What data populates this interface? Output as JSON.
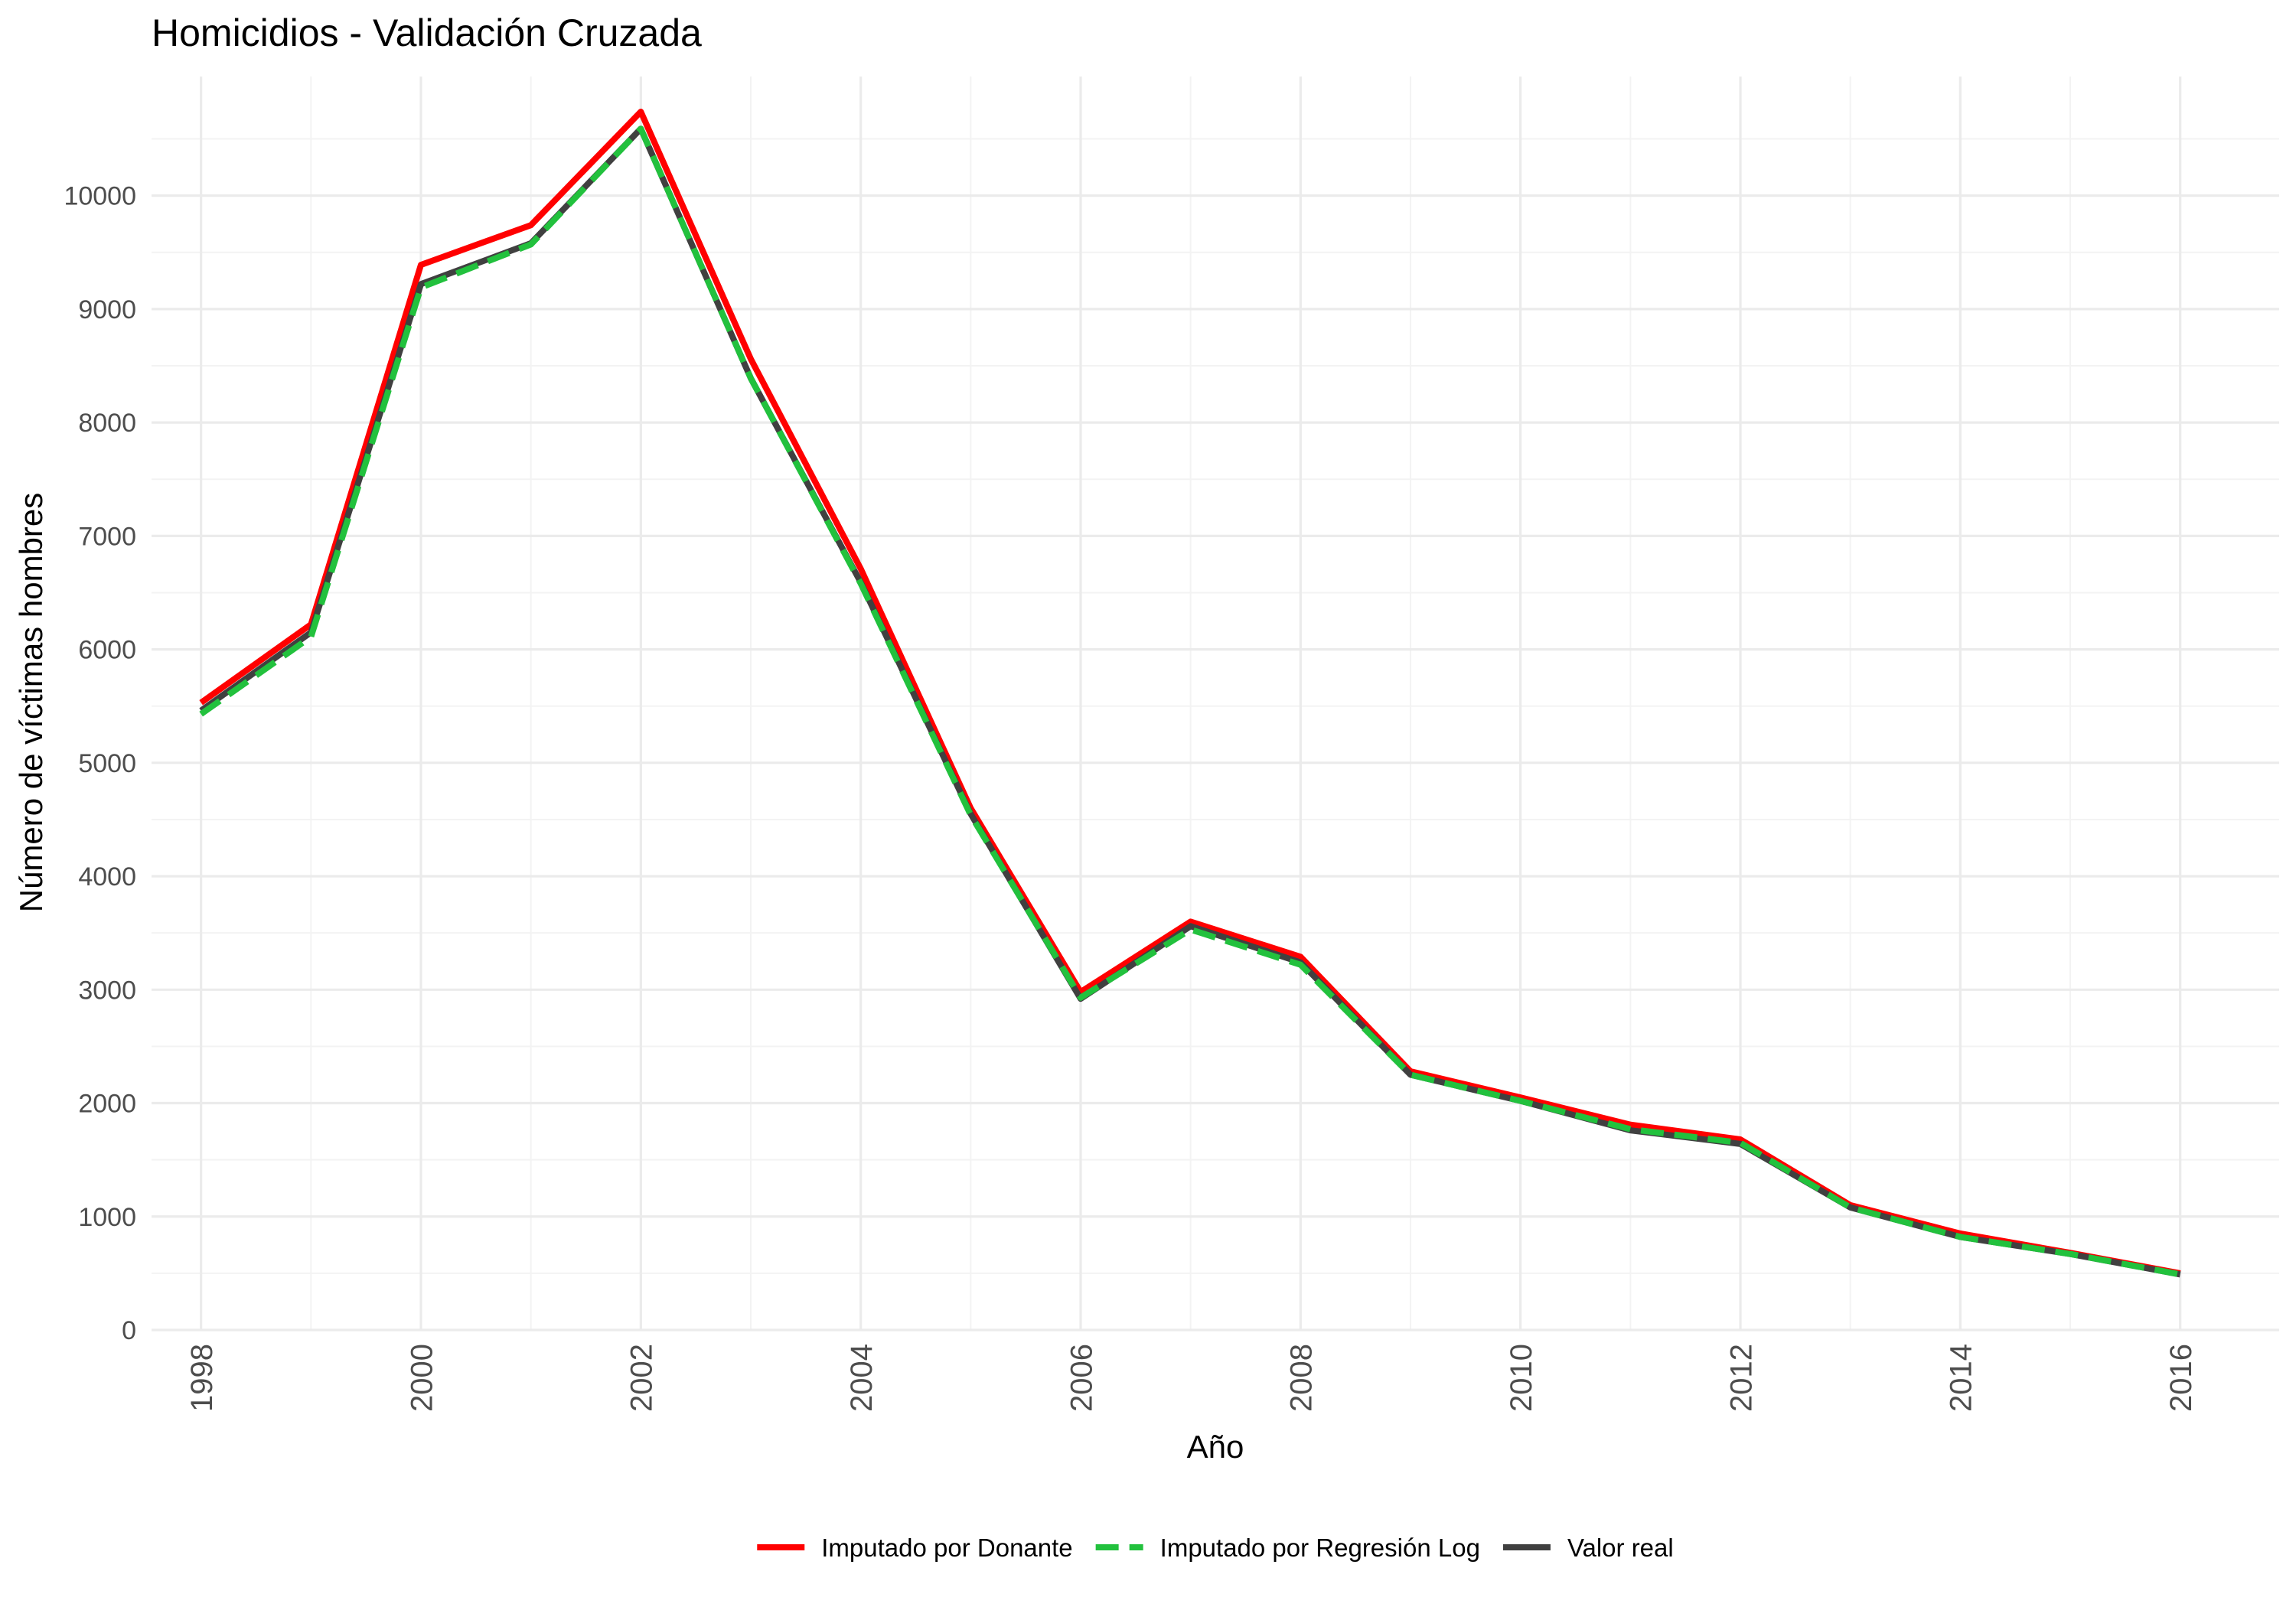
{
  "chart_data": {
    "type": "line",
    "title": "Homicidios - Validación Cruzada",
    "xlabel": "Año",
    "ylabel": "Número de víctimas hombres",
    "x": [
      1998,
      1999,
      2000,
      2001,
      2002,
      2003,
      2004,
      2005,
      2006,
      2007,
      2008,
      2009,
      2010,
      2011,
      2012,
      2013,
      2014,
      2015,
      2016
    ],
    "xticks": [
      "1998",
      "2000",
      "2002",
      "2004",
      "2006",
      "2008",
      "2010",
      "2012",
      "2014",
      "2016"
    ],
    "yticks": [
      "0",
      "1000",
      "2000",
      "3000",
      "4000",
      "5000",
      "6000",
      "7000",
      "8000",
      "9000",
      "10000"
    ],
    "xlim": [
      1997.55,
      2016.9
    ],
    "ylim": [
      0,
      11050
    ],
    "grid": true,
    "legend_position": "bottom",
    "series": [
      {
        "name": "Imputado por Donante",
        "color": "#ff0000",
        "linetype": "solid",
        "values": [
          5530,
          6220,
          9390,
          9740,
          10740,
          8560,
          6710,
          4600,
          2980,
          3600,
          3290,
          2280,
          2050,
          1810,
          1680,
          1100,
          850,
          680,
          500
        ]
      },
      {
        "name": "Imputado por Regresión Log",
        "color": "#22c13d",
        "linetype": "dashed",
        "values": [
          5430,
          6110,
          9190,
          9570,
          10590,
          8390,
          6580,
          4540,
          2930,
          3530,
          3220,
          2250,
          2020,
          1770,
          1650,
          1080,
          820,
          670,
          490
        ]
      },
      {
        "name": "Valor real",
        "color": "#404040",
        "linetype": "solid",
        "values": [
          5460,
          6150,
          9220,
          9580,
          10590,
          8390,
          6590,
          4550,
          2920,
          3560,
          3240,
          2250,
          2020,
          1760,
          1640,
          1080,
          820,
          670,
          490
        ]
      }
    ]
  }
}
